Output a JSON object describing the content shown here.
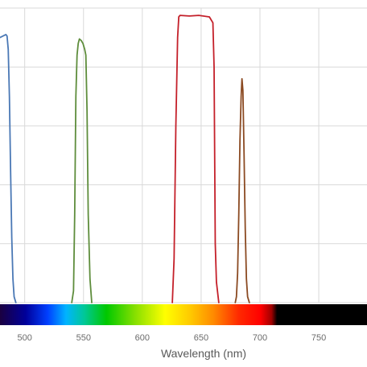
{
  "chart_data": {
    "type": "line",
    "xlabel": "Wavelength (nm)",
    "ylabel": "",
    "xlim": [
      479,
      791
    ],
    "ylim": [
      0,
      100
    ],
    "x_ticks": [
      500,
      550,
      600,
      650,
      700,
      750
    ],
    "y_grid": [
      0,
      20,
      40,
      60,
      80,
      100
    ],
    "grid": true,
    "legend": "none",
    "spectrum_bar": {
      "visible_end_nm": 714
    },
    "series": [
      {
        "color": "#4a78b5",
        "points": [
          [
            479,
            90
          ],
          [
            484,
            91
          ],
          [
            485,
            90.5
          ],
          [
            486,
            86
          ],
          [
            487,
            70
          ],
          [
            488,
            45
          ],
          [
            489,
            22
          ],
          [
            490,
            8
          ],
          [
            491,
            2
          ],
          [
            492.5,
            0
          ]
        ]
      },
      {
        "color": "#5e8d3c",
        "points": [
          [
            540,
            0
          ],
          [
            541.5,
            4
          ],
          [
            542.5,
            30
          ],
          [
            543.5,
            70
          ],
          [
            544.5,
            84
          ],
          [
            545.5,
            88
          ],
          [
            546.5,
            89.5
          ],
          [
            548,
            89
          ],
          [
            549.5,
            88
          ],
          [
            551,
            86
          ],
          [
            552,
            84
          ],
          [
            553,
            65
          ],
          [
            554,
            30
          ],
          [
            555.5,
            8
          ],
          [
            557,
            0
          ]
        ]
      },
      {
        "color": "#c4202a",
        "points": [
          [
            625.5,
            0
          ],
          [
            627,
            15
          ],
          [
            628.5,
            60
          ],
          [
            630,
            90
          ],
          [
            631,
            97
          ],
          [
            632,
            97.5
          ],
          [
            640,
            97.3
          ],
          [
            648,
            97.5
          ],
          [
            657,
            97
          ],
          [
            660,
            95
          ],
          [
            661,
            80
          ],
          [
            662,
            20
          ],
          [
            663,
            7
          ],
          [
            665,
            0
          ]
        ]
      },
      {
        "color": "#8b4a22",
        "points": [
          [
            679,
            0
          ],
          [
            680,
            2
          ],
          [
            681,
            10
          ],
          [
            682,
            30
          ],
          [
            683,
            55
          ],
          [
            684,
            70
          ],
          [
            684.7,
            76
          ],
          [
            685.5,
            72
          ],
          [
            686.5,
            50
          ],
          [
            687.5,
            25
          ],
          [
            688.5,
            8
          ],
          [
            689.5,
            2
          ],
          [
            691,
            0
          ]
        ]
      }
    ]
  }
}
